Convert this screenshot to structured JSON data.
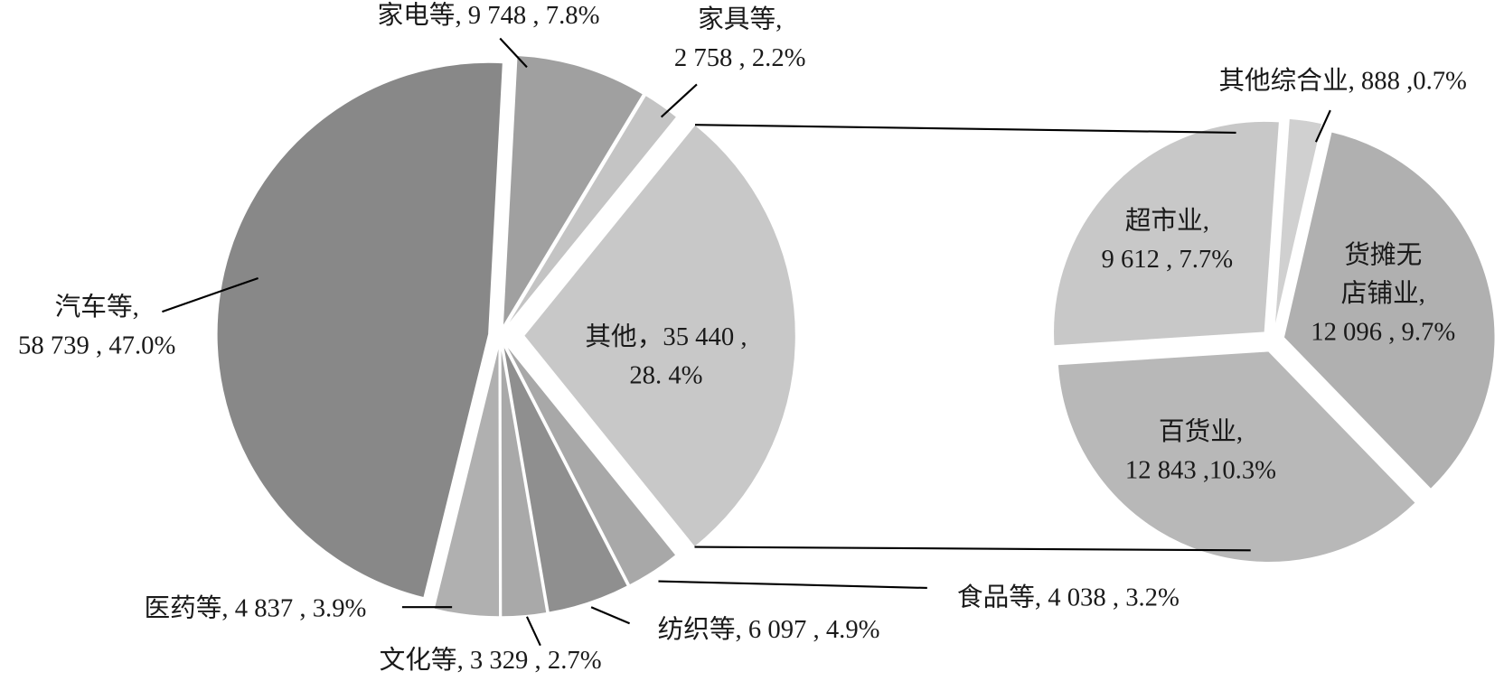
{
  "chart_data": [
    {
      "type": "pie",
      "values": [
        9748,
        2758,
        35440,
        4038,
        6097,
        3329,
        4837,
        58739
      ],
      "value_labels": [
        [
          "家电等, 9 748 , 7.8%"
        ],
        [
          "家具等,",
          "2 758 , 2.2%"
        ],
        [
          "其他，35 440 ,",
          "28. 4%"
        ],
        [
          "食品等, 4 038 , 3.2%"
        ],
        [
          "纺织等, 6 097 , 4.9%"
        ],
        [
          "文化等, 3 329 , 2.7%"
        ],
        [
          "医药等, 4 837 , 3.9%"
        ],
        [
          "汽车等,",
          "58 739 , 47.0%"
        ]
      ],
      "colors": [
        "#a0a0a0",
        "#c4c4c4",
        "#c8c8c8",
        "#a8a8a8",
        "#8f8f8f",
        "#a9a9a9",
        "#b0b0b0",
        "#888888"
      ]
    },
    {
      "type": "pie",
      "values": [
        888,
        12096,
        12843,
        9612
      ],
      "value_labels": [
        [
          "其他综合业, 888 ,0.7%"
        ],
        [
          "货摊无",
          "店铺业,",
          "12 096 , 9.7%"
        ],
        [
          "百货业,",
          "12 843 ,10.3%"
        ],
        [
          "超市业,",
          "9 612 , 7.7%"
        ]
      ],
      "colors": [
        "#d0d0d0",
        "#b0b0b0",
        "#b8b8b8",
        "#c8c8c8"
      ]
    }
  ]
}
